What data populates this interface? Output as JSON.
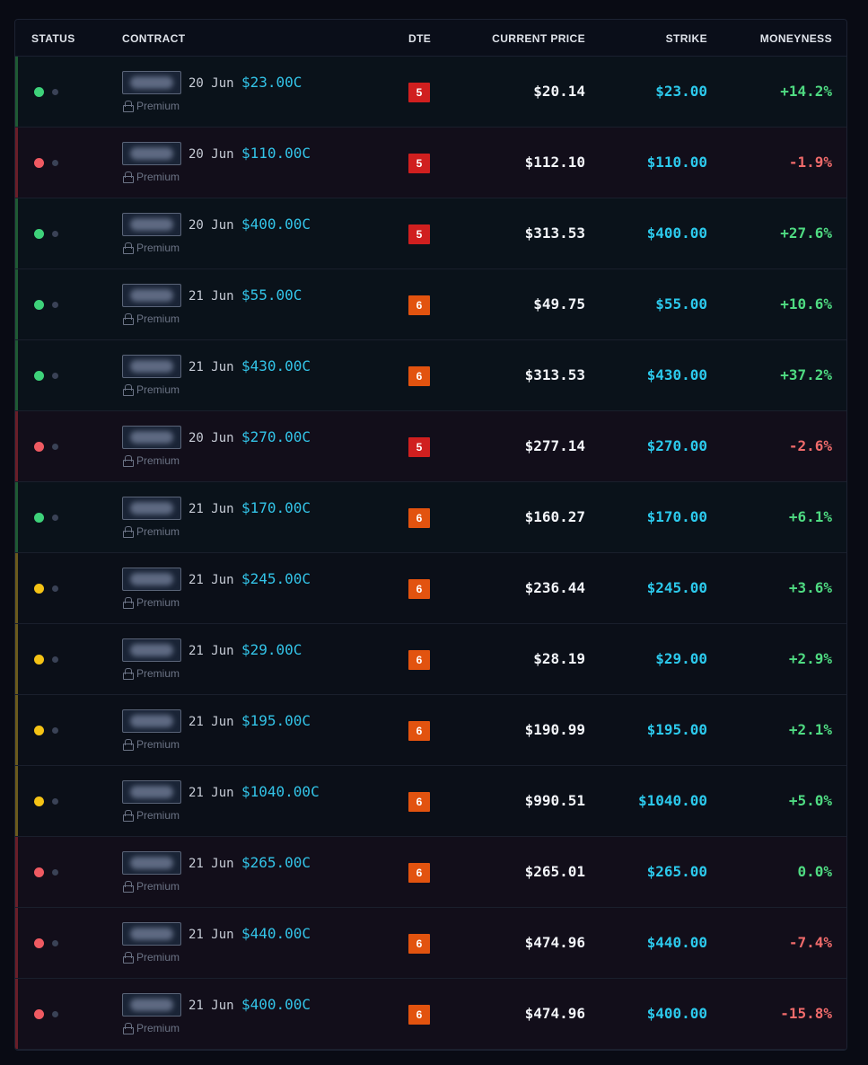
{
  "header": {
    "status": "STATUS",
    "contract": "CONTRACT",
    "dte": "DTE",
    "current_price": "CURRENT PRICE",
    "strike": "STRIKE",
    "moneyness": "MONEYNESS"
  },
  "colors": {
    "green": "#3ed27a",
    "red": "#ef5a62",
    "yellow": "#f5c315",
    "accent_cyan": "#33c4e8",
    "dte_5": "#d01f1f",
    "dte_6": "#e2530f"
  },
  "rows": [
    {
      "status": "green",
      "date": "20 Jun",
      "contract": "$23.00C",
      "premium": "Premium",
      "dte": "5",
      "price": "$20.14",
      "strike": "$23.00",
      "moneyness": "+14.2%"
    },
    {
      "status": "red",
      "date": "20 Jun",
      "contract": "$110.00C",
      "premium": "Premium",
      "dte": "5",
      "price": "$112.10",
      "strike": "$110.00",
      "moneyness": "-1.9%"
    },
    {
      "status": "green",
      "date": "20 Jun",
      "contract": "$400.00C",
      "premium": "Premium",
      "dte": "5",
      "price": "$313.53",
      "strike": "$400.00",
      "moneyness": "+27.6%"
    },
    {
      "status": "green",
      "date": "21 Jun",
      "contract": "$55.00C",
      "premium": "Premium",
      "dte": "6",
      "price": "$49.75",
      "strike": "$55.00",
      "moneyness": "+10.6%"
    },
    {
      "status": "green",
      "date": "21 Jun",
      "contract": "$430.00C",
      "premium": "Premium",
      "dte": "6",
      "price": "$313.53",
      "strike": "$430.00",
      "moneyness": "+37.2%"
    },
    {
      "status": "red",
      "date": "20 Jun",
      "contract": "$270.00C",
      "premium": "Premium",
      "dte": "5",
      "price": "$277.14",
      "strike": "$270.00",
      "moneyness": "-2.6%"
    },
    {
      "status": "green",
      "date": "21 Jun",
      "contract": "$170.00C",
      "premium": "Premium",
      "dte": "6",
      "price": "$160.27",
      "strike": "$170.00",
      "moneyness": "+6.1%"
    },
    {
      "status": "yellow",
      "date": "21 Jun",
      "contract": "$245.00C",
      "premium": "Premium",
      "dte": "6",
      "price": "$236.44",
      "strike": "$245.00",
      "moneyness": "+3.6%"
    },
    {
      "status": "yellow",
      "date": "21 Jun",
      "contract": "$29.00C",
      "premium": "Premium",
      "dte": "6",
      "price": "$28.19",
      "strike": "$29.00",
      "moneyness": "+2.9%"
    },
    {
      "status": "yellow",
      "date": "21 Jun",
      "contract": "$195.00C",
      "premium": "Premium",
      "dte": "6",
      "price": "$190.99",
      "strike": "$195.00",
      "moneyness": "+2.1%"
    },
    {
      "status": "yellow",
      "date": "21 Jun",
      "contract": "$1040.00C",
      "premium": "Premium",
      "dte": "6",
      "price": "$990.51",
      "strike": "$1040.00",
      "moneyness": "+5.0%"
    },
    {
      "status": "red",
      "date": "21 Jun",
      "contract": "$265.00C",
      "premium": "Premium",
      "dte": "6",
      "price": "$265.01",
      "strike": "$265.00",
      "moneyness": "0.0%"
    },
    {
      "status": "red",
      "date": "21 Jun",
      "contract": "$440.00C",
      "premium": "Premium",
      "dte": "6",
      "price": "$474.96",
      "strike": "$440.00",
      "moneyness": "-7.4%"
    },
    {
      "status": "red",
      "date": "21 Jun",
      "contract": "$400.00C",
      "premium": "Premium",
      "dte": "6",
      "price": "$474.96",
      "strike": "$400.00",
      "moneyness": "-15.8%"
    }
  ]
}
